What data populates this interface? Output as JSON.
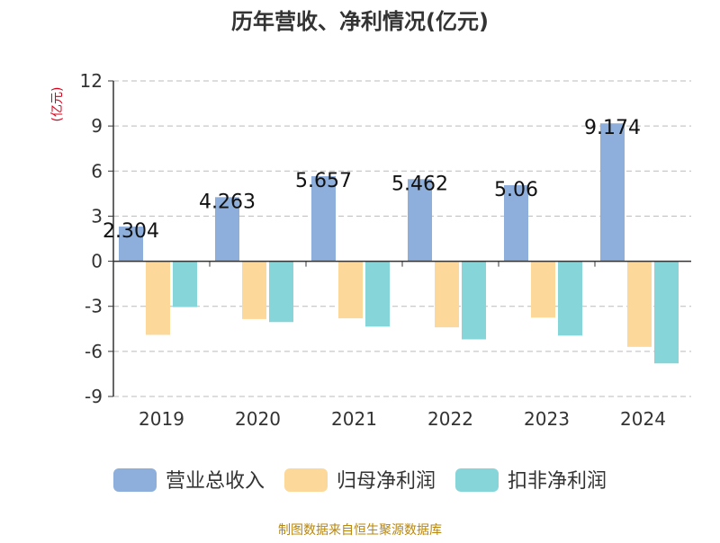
{
  "chart_data": {
    "type": "bar",
    "title": "历年营收、净利情况(亿元)",
    "ylabel": "(亿元)",
    "xlabel": "",
    "categories": [
      "2019",
      "2020",
      "2021",
      "2022",
      "2023",
      "2024"
    ],
    "ylim": [
      -9,
      12
    ],
    "yticks": [
      -9,
      -6,
      -3,
      0,
      3,
      6,
      9,
      12
    ],
    "grid": true,
    "legend_position": "bottom",
    "series": [
      {
        "name": "营业总收入",
        "color": "#8eaedb",
        "values": [
          2.304,
          4.263,
          5.657,
          5.462,
          5.06,
          9.174
        ],
        "labels": [
          "2.304",
          "4.263",
          "5.657",
          "5.462",
          "5.06",
          "9.174"
        ]
      },
      {
        "name": "归母净利润",
        "color": "#fdd89b",
        "values": [
          -4.9,
          -3.85,
          -3.8,
          -4.4,
          -3.75,
          -5.7
        ]
      },
      {
        "name": "扣非净利润",
        "color": "#86d5d8",
        "values": [
          -3.05,
          -4.05,
          -4.35,
          -5.2,
          -4.95,
          -6.8
        ]
      }
    ],
    "source": "制图数据来自恒生聚源数据库"
  },
  "colors": {
    "title": "#333333",
    "ylabel": "#d9001b",
    "axis": "#333333",
    "grid": "#bbbbbb",
    "source": "#b8860b"
  }
}
